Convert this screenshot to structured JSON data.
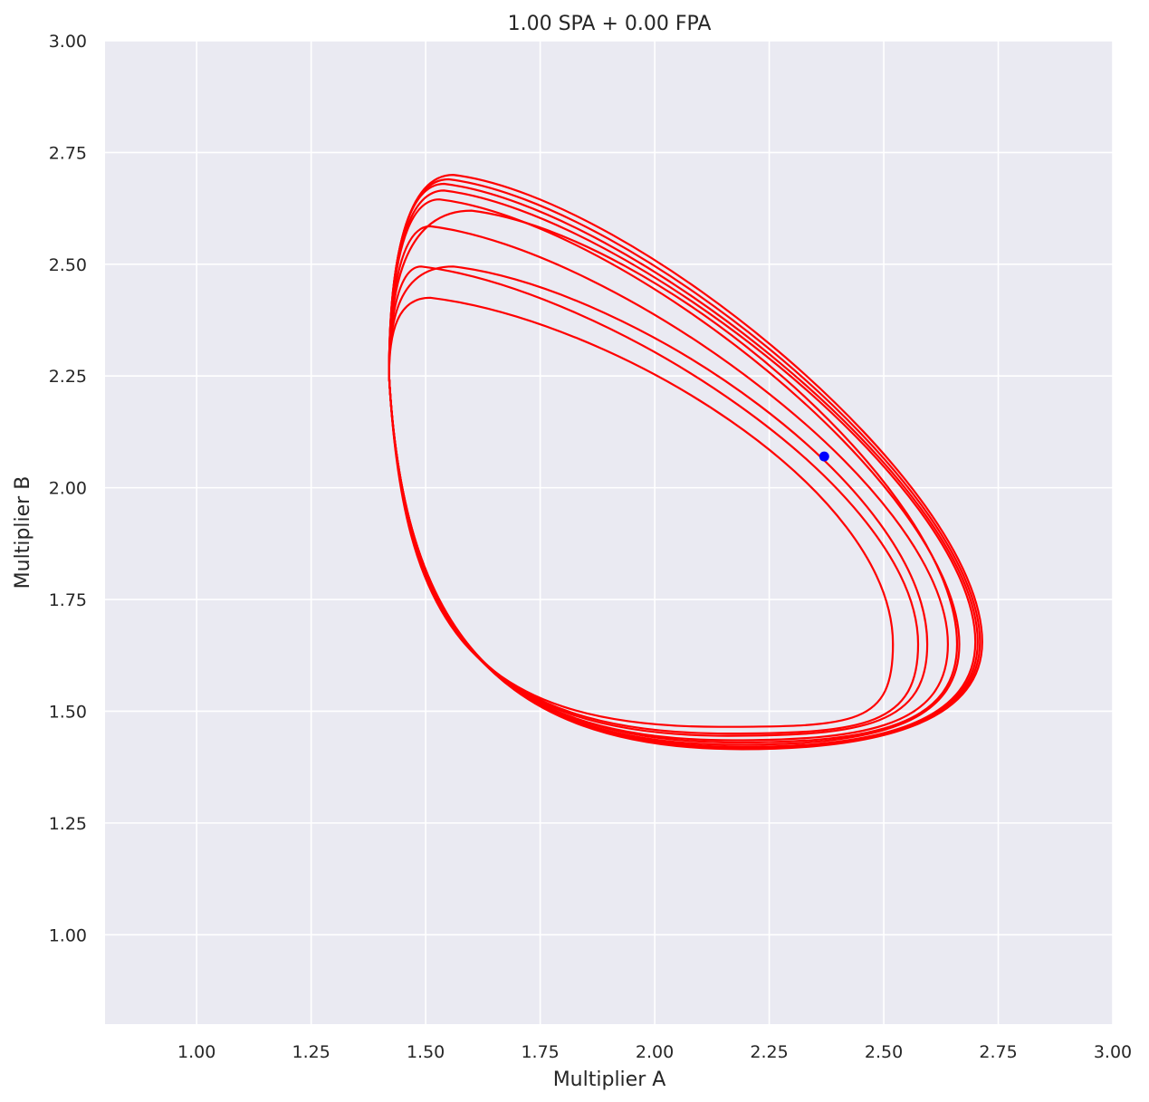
{
  "chart_data": {
    "type": "line",
    "title": "1.00 SPA + 0.00 FPA",
    "xlabel": "Multiplier A",
    "ylabel": "Multiplier B",
    "xlim": [
      0.8,
      3.0
    ],
    "ylim": [
      0.8,
      3.0
    ],
    "xticks": [
      "1.00",
      "1.25",
      "1.50",
      "1.75",
      "2.00",
      "2.25",
      "2.50",
      "2.75",
      "3.00"
    ],
    "yticks": [
      "1.00",
      "1.25",
      "1.50",
      "1.75",
      "2.00",
      "2.25",
      "2.50",
      "2.75",
      "3.00"
    ],
    "grid": true,
    "colors": {
      "background": "#eaeaf2",
      "grid": "#ffffff",
      "trajectory": "#ff0000",
      "marker": "#0000ff"
    },
    "trajectory_loops": [
      {
        "left_x": 1.42,
        "top_y": 2.425,
        "top_x": 1.51,
        "right_x": 2.52,
        "right_y": 1.65,
        "bottom_y": 1.465,
        "bottom_x": 2.14,
        "left_y": 2.25
      },
      {
        "left_x": 1.42,
        "top_y": 2.495,
        "top_x": 1.49,
        "right_x": 2.575,
        "right_y": 1.65,
        "bottom_y": 1.45,
        "bottom_x": 2.16,
        "left_y": 2.25
      },
      {
        "left_x": 1.42,
        "top_y": 2.495,
        "top_x": 1.56,
        "right_x": 2.595,
        "right_y": 1.65,
        "bottom_y": 1.445,
        "bottom_x": 2.16,
        "left_y": 2.25
      },
      {
        "left_x": 1.42,
        "top_y": 2.585,
        "top_x": 1.51,
        "right_x": 2.64,
        "right_y": 1.65,
        "bottom_y": 1.435,
        "bottom_x": 2.17,
        "left_y": 2.25
      },
      {
        "left_x": 1.42,
        "top_y": 2.62,
        "top_x": 1.6,
        "right_x": 2.66,
        "right_y": 1.65,
        "bottom_y": 1.43,
        "bottom_x": 2.18,
        "left_y": 2.25
      },
      {
        "left_x": 1.42,
        "top_y": 2.645,
        "top_x": 1.53,
        "right_x": 2.665,
        "right_y": 1.65,
        "bottom_y": 1.425,
        "bottom_x": 2.18,
        "left_y": 2.25
      },
      {
        "left_x": 1.42,
        "top_y": 2.665,
        "top_x": 1.54,
        "right_x": 2.7,
        "right_y": 1.655,
        "bottom_y": 1.42,
        "bottom_x": 2.19,
        "left_y": 2.25
      },
      {
        "left_x": 1.42,
        "top_y": 2.68,
        "top_x": 1.54,
        "right_x": 2.705,
        "right_y": 1.655,
        "bottom_y": 1.418,
        "bottom_x": 2.19,
        "left_y": 2.25
      },
      {
        "left_x": 1.42,
        "top_y": 2.69,
        "top_x": 1.55,
        "right_x": 2.71,
        "right_y": 1.655,
        "bottom_y": 1.416,
        "bottom_x": 2.19,
        "left_y": 2.25
      },
      {
        "left_x": 1.42,
        "top_y": 2.7,
        "top_x": 1.56,
        "right_x": 2.715,
        "right_y": 1.655,
        "bottom_y": 1.415,
        "bottom_x": 2.19,
        "left_y": 2.25
      }
    ],
    "current_point": {
      "x": 2.37,
      "y": 2.07
    }
  }
}
